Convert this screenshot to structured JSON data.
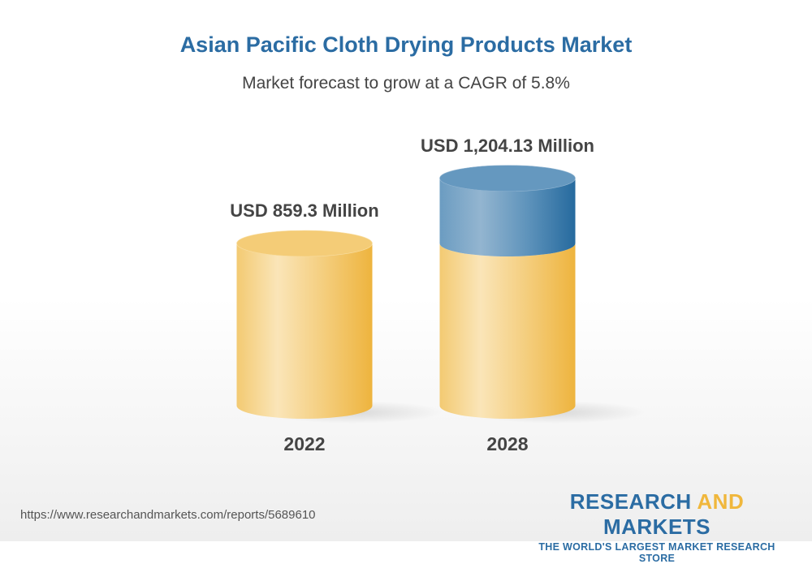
{
  "chart_data": {
    "type": "bar",
    "style": "3d-cylinder",
    "title": "Asian Pacific Cloth Drying Products Market",
    "subtitle": "Market forecast to grow at a CAGR of 5.8%",
    "categories": [
      "2022",
      "2028"
    ],
    "values": [
      859.3,
      1204.13
    ],
    "data_labels": [
      "USD 859.3 Million",
      "USD 1,204.13 Million"
    ],
    "colors": {
      "base": "#f2c060",
      "growth": "#2b6ca3",
      "title": "#2b6ca3"
    }
  },
  "footer": {
    "url": "https://www.researchandmarkets.com/reports/5689610",
    "logo_part1": "RESEARCH ",
    "logo_part2": "AND",
    "logo_part3": " MARKETS",
    "tagline": "THE WORLD'S LARGEST MARKET RESEARCH STORE"
  }
}
